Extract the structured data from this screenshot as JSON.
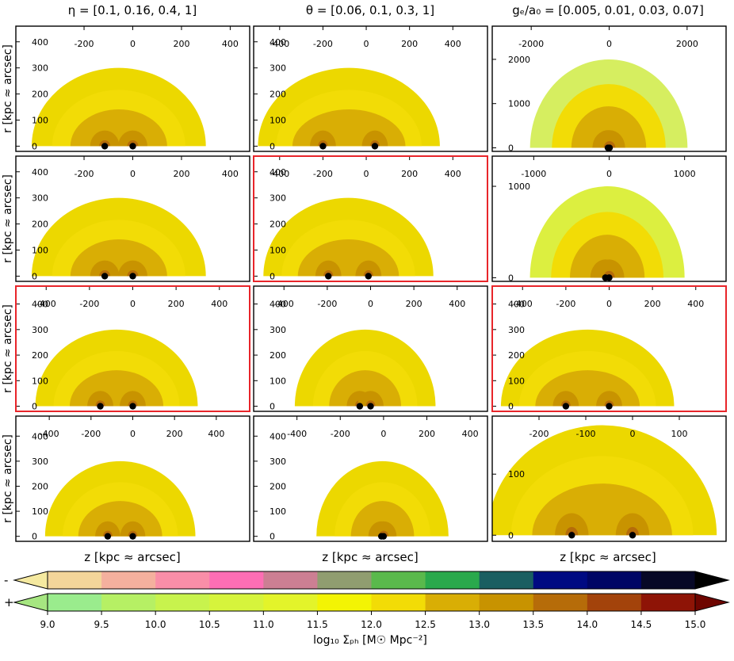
{
  "chart_data": {
    "type": "contour-grid",
    "column_titles": [
      "η = [0.1,  0.16,  0.4,  1]",
      "θ = [0.06,  0.1,  0.3,  1]",
      "gₑ/a₀ = [0.005,  0.01,  0.03,  0.07]"
    ],
    "ylabel": "r [kpc ≈ arcsec]",
    "xlabel": "z [kpc ≈ arcsec]",
    "highlighted_panels": [
      [
        1,
        1
      ],
      [
        2,
        0
      ],
      [
        2,
        2
      ]
    ],
    "panels": [
      [
        {
          "xticks": [
            -200,
            0,
            200,
            400
          ],
          "yticks": [
            0,
            100,
            200,
            300,
            400
          ],
          "xlim": [
            -480,
            480
          ],
          "ylim": [
            -20,
            460
          ],
          "R": 300,
          "masses": [
            -115,
            0
          ],
          "outer_color": "#ecd800"
        },
        {
          "xticks": [
            -400,
            -200,
            0,
            200,
            400
          ],
          "yticks": [
            0,
            100,
            200,
            300,
            400
          ],
          "xlim": [
            -520,
            560
          ],
          "ylim": [
            -20,
            460
          ],
          "R": 300,
          "masses": [
            -200,
            40
          ],
          "outer_color": "#ecd800"
        },
        {
          "xticks": [
            -2000,
            0,
            2000
          ],
          "yticks": [
            0,
            1000,
            2000
          ],
          "xlim": [
            -3000,
            3000
          ],
          "ylim": [
            -80,
            2750
          ],
          "R": 2000,
          "masses": [
            -30,
            10
          ],
          "outer_color": "#d6ee60"
        }
      ],
      [
        {
          "xticks": [
            -200,
            0,
            200,
            400
          ],
          "yticks": [
            0,
            100,
            200,
            300,
            400
          ],
          "xlim": [
            -480,
            480
          ],
          "ylim": [
            -20,
            460
          ],
          "R": 300,
          "masses": [
            -115,
            0
          ],
          "outer_color": "#ecd800"
        },
        {
          "xticks": [
            -400,
            -200,
            0,
            200,
            400
          ],
          "yticks": [
            0,
            100,
            200,
            300,
            400
          ],
          "xlim": [
            -520,
            560
          ],
          "ylim": [
            -20,
            460
          ],
          "R": 300,
          "masses": [
            -175,
            10
          ],
          "outer_color": "#ecd800"
        },
        {
          "xticks": [
            -1000,
            0,
            1000
          ],
          "yticks": [
            0,
            1000
          ],
          "xlim": [
            -1550,
            1550
          ],
          "ylim": [
            -40,
            1330
          ],
          "R": 1000,
          "masses": [
            -50,
            0
          ],
          "outer_color": "#dcef40"
        }
      ],
      [
        {
          "xticks": [
            -400,
            -200,
            0,
            200,
            400
          ],
          "yticks": [
            0,
            100,
            200,
            300,
            400
          ],
          "xlim": [
            -540,
            540
          ],
          "ylim": [
            -20,
            470
          ],
          "R": 300,
          "masses": [
            -150,
            0
          ],
          "outer_color": "#ecd800"
        },
        {
          "xticks": [
            -400,
            -200,
            0,
            200,
            400
          ],
          "yticks": [
            0,
            100,
            200,
            300,
            400
          ],
          "xlim": [
            -540,
            540
          ],
          "ylim": [
            -20,
            470
          ],
          "R": 300,
          "masses": [
            -50,
            0
          ],
          "outer_color": "#ecd800"
        },
        {
          "xticks": [
            -400,
            -200,
            0,
            200,
            400
          ],
          "yticks": [
            0,
            100,
            200,
            300,
            400
          ],
          "xlim": [
            -540,
            540
          ],
          "ylim": [
            -20,
            470
          ],
          "R": 300,
          "masses": [
            -200,
            0
          ],
          "outer_color": "#ecd800"
        }
      ],
      [
        {
          "xticks": [
            -400,
            -200,
            0,
            200,
            400
          ],
          "yticks": [
            0,
            100,
            200,
            300,
            400
          ],
          "xlim": [
            -560,
            560
          ],
          "ylim": [
            -20,
            480
          ],
          "R": 300,
          "masses": [
            -120,
            0
          ],
          "outer_color": "#ecd800"
        },
        {
          "xticks": [
            -400,
            -200,
            0,
            200,
            400
          ],
          "yticks": [
            0,
            100,
            200,
            300,
            400
          ],
          "xlim": [
            -600,
            480
          ],
          "ylim": [
            -20,
            480
          ],
          "R": 300,
          "masses": [
            -10,
            0
          ],
          "outer_color": "#ecd800"
        },
        {
          "xticks": [
            -200,
            -100,
            0,
            100
          ],
          "yticks": [
            0,
            100
          ],
          "xlim": [
            -300,
            200
          ],
          "ylim": [
            -10,
            195
          ],
          "R": 180,
          "masses": [
            -130,
            0
          ],
          "outer_color": "#ecd800"
        }
      ]
    ],
    "colorbar": {
      "label": "log₁₀ Σₚₕ  [M☉ Mpc⁻²]",
      "ticks": [
        "9.0",
        "9.5",
        "10.0",
        "10.5",
        "11.0",
        "11.5",
        "12.0",
        "12.5",
        "13.0",
        "13.5",
        "14.0",
        "14.5",
        "15.0"
      ],
      "negative_sign": "-",
      "positive_sign": "+",
      "negative_colors": [
        "#f5e9a0",
        "#f3d59a",
        "#f4b09e",
        "#f98ea8",
        "#fd6eb4",
        "#cc7f93",
        "#909d70",
        "#5ab94c",
        "#2aa94c",
        "#1a5e61",
        "#000a82",
        "#000565",
        "#070826",
        "#000000"
      ],
      "positive_colors": [
        "#a6e681",
        "#9aec8d",
        "#b6f064",
        "#c8f34d",
        "#d6f43c",
        "#e3f42a",
        "#f3f404",
        "#f2dc06",
        "#d9ae05",
        "#c89300",
        "#b66c09",
        "#a3430b",
        "#8e1406",
        "#6e0500"
      ]
    }
  }
}
